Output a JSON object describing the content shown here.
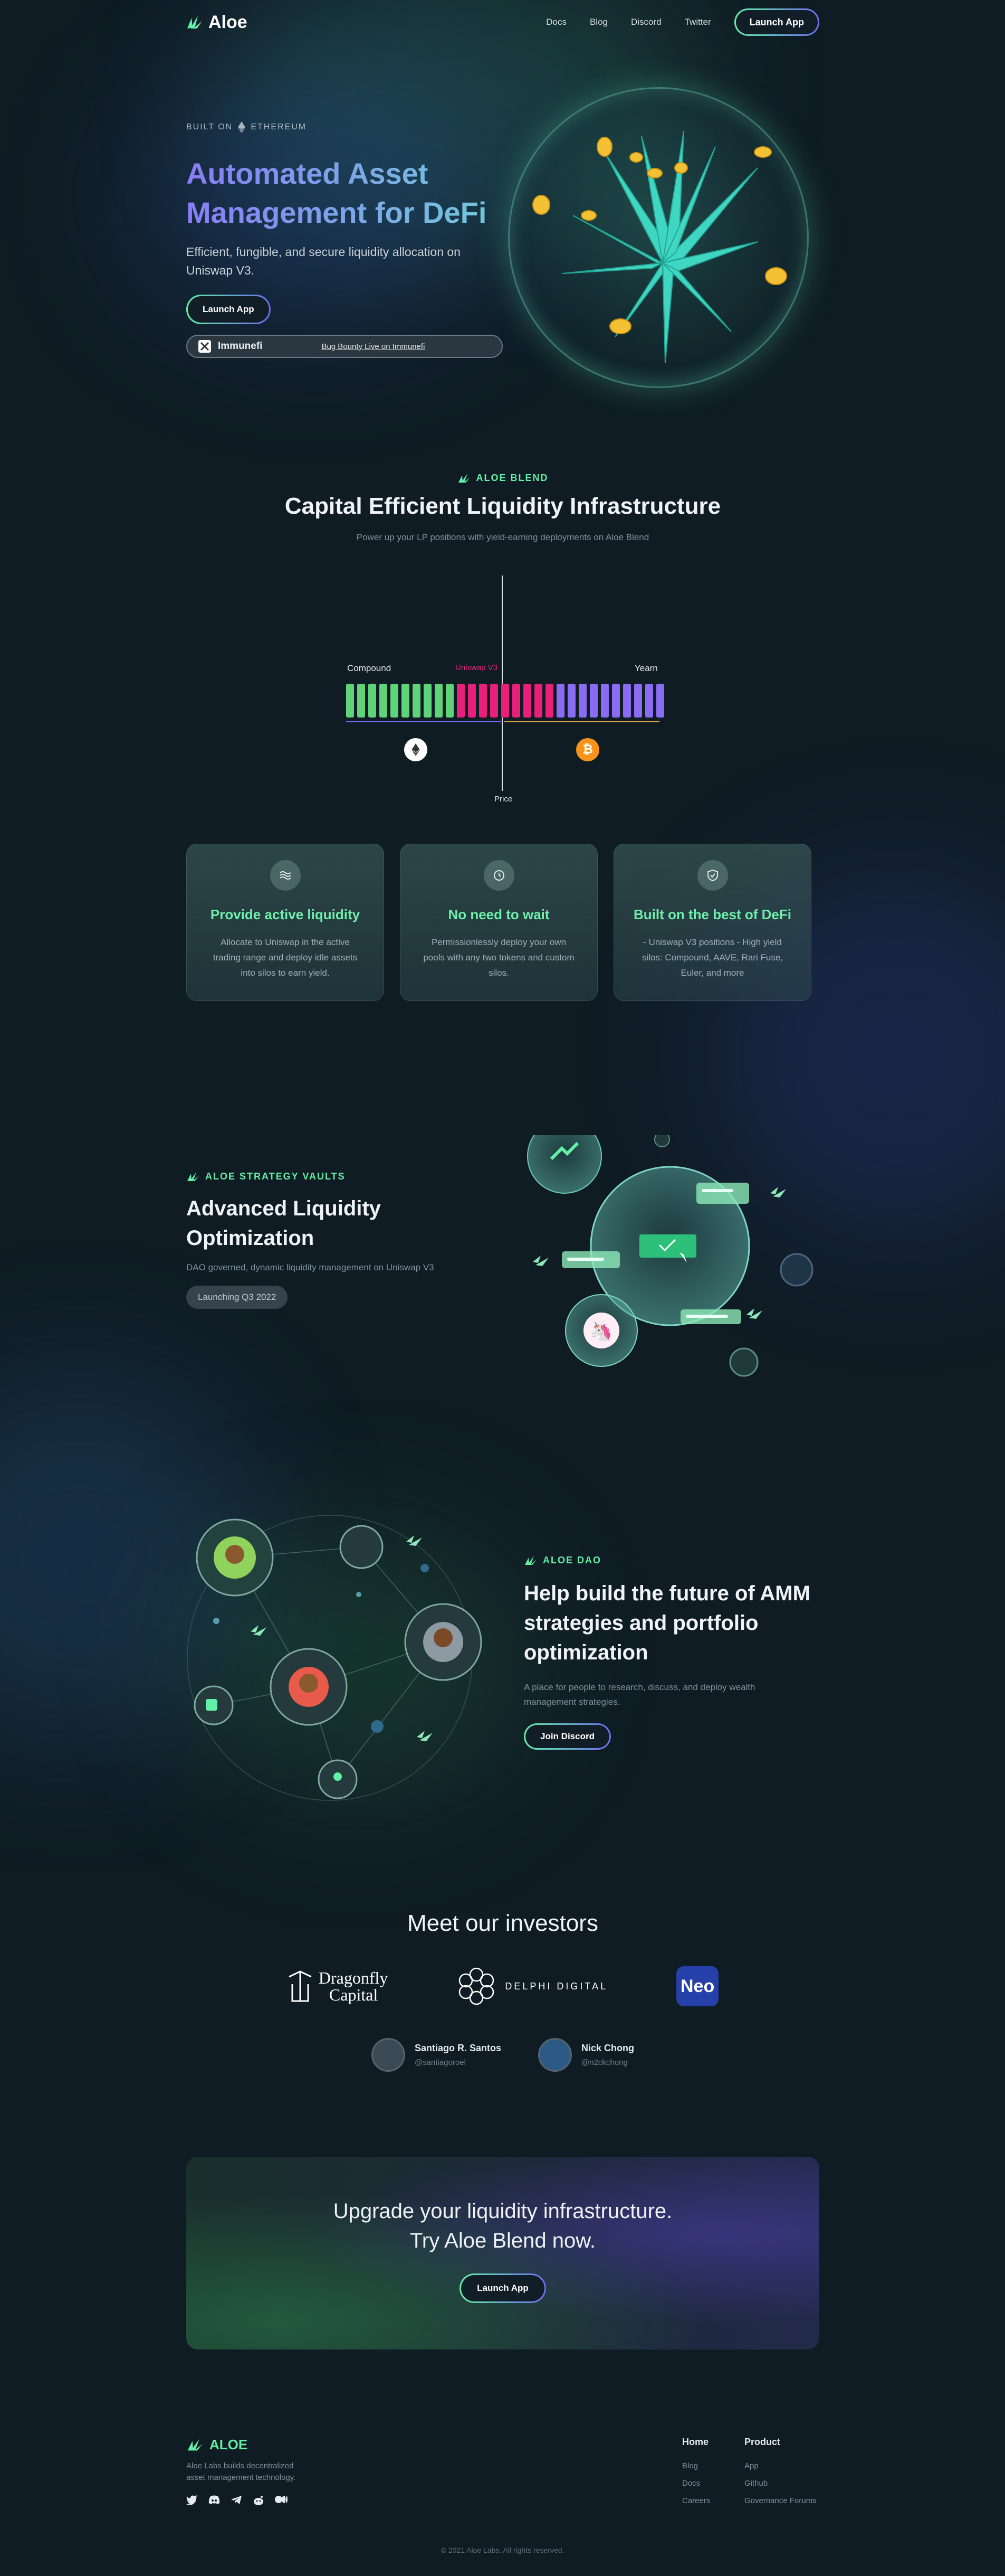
{
  "nav": {
    "logo": "Aloe",
    "links": [
      "Docs",
      "Blog",
      "Discord",
      "Twitter"
    ],
    "cta": "Launch App"
  },
  "hero": {
    "built_on": "BUILT ON",
    "chain": "ETHEREUM",
    "title": "Automated Asset Management for DeFi",
    "subtitle": "Efficient, fungible, and secure liquidity allocation on Uniswap V3.",
    "cta": "Launch App",
    "immunefi": "Immunefi",
    "bounty": "Bug Bounty Live on Immunefi"
  },
  "blend": {
    "tag": "ALOE BLEND",
    "title": "Capital Efficient Liquidity Infrastructure",
    "subtitle": "Power up your LP positions with yield-earning deployments on Aloe Blend",
    "labels": {
      "left": "Compound",
      "middle": "Uniswap V3",
      "right": "Yearn",
      "axis": "Price"
    },
    "bars": {
      "green": 10,
      "pink": 9,
      "purple": 10
    }
  },
  "features": [
    {
      "title": "Provide active liquidity",
      "body": "Allocate to Uniswap in the active trading range and deploy idle assets into silos to earn yield.",
      "icon": "waves-icon"
    },
    {
      "title": "No need to wait",
      "body": "Permissionlessly deploy your own pools with any two tokens and custom silos.",
      "icon": "clock-icon"
    },
    {
      "title": "Built on the best of DeFi",
      "body": "- Uniswap V3 positions - High yield silos: Compound, AAVE, Rari Fuse, Euler, and more",
      "icon": "shield-icon"
    }
  ],
  "vaults": {
    "tag": "ALOE STRATEGY VAULTS",
    "title": "Advanced Liquidity Optimization",
    "subtitle": "DAO governed, dynamic liquidity management on Uniswap V3",
    "badge": "Launching Q3 2022"
  },
  "dao": {
    "tag": "ALOE DAO",
    "title": "Help build the future of AMM strategies and portfolio optimization",
    "subtitle": "A place for people to research, discuss, and deploy wealth management strategies.",
    "cta": "Join Discord"
  },
  "investors": {
    "title": "Meet our investors",
    "firms": [
      "Dragonfly",
      "Capital",
      "DELPHI DIGITAL",
      "Neo"
    ],
    "angels": [
      {
        "name": "Santiago R. Santos",
        "handle": "@santiagoroel"
      },
      {
        "name": "Nick Chong",
        "handle": "@n2ckchong"
      }
    ]
  },
  "cta_banner": {
    "line1": "Upgrade your liquidity infrastructure.",
    "line2": "Try Aloe Blend now.",
    "button": "Launch App"
  },
  "footer": {
    "logo": "ALOE",
    "description": "Aloe Labs builds decentralized asset management technology.",
    "home_title": "Home",
    "home_links": [
      "Blog",
      "Docs",
      "Careers"
    ],
    "product_title": "Product",
    "product_links": [
      "App",
      "Github",
      "Governance Forums"
    ],
    "copyright": "© 2021 Aloe Labs. All rights reserved."
  },
  "colors": {
    "accent_green": "#63f0a7",
    "accent_purple": "#6d6cf2",
    "pink": "#e8207a",
    "background": "#0f1c24"
  }
}
